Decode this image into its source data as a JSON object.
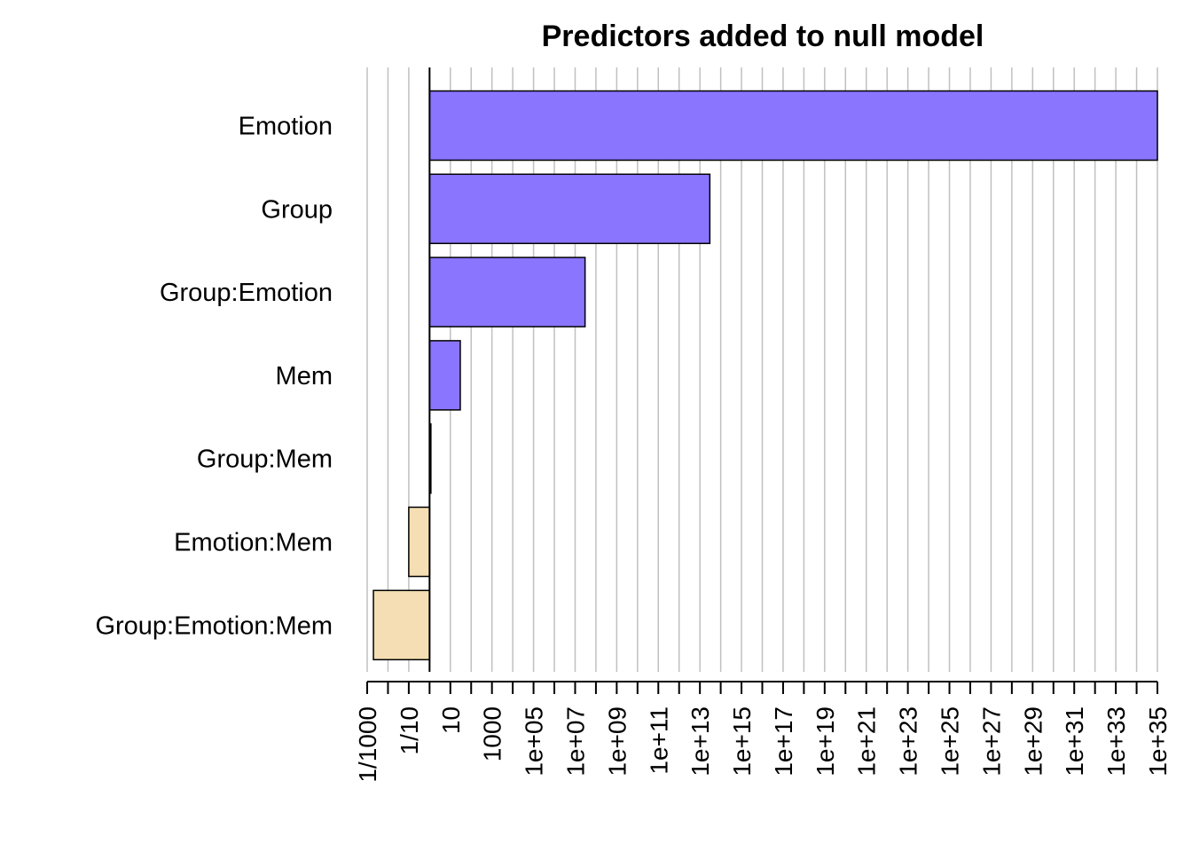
{
  "chart_data": {
    "type": "bar",
    "orientation": "horizontal",
    "title": "Predictors added to null model",
    "xlabel": "",
    "ylabel": "",
    "x_scale": "log10",
    "baseline": 1,
    "xlim": [
      0.001,
      1e+35
    ],
    "categories": [
      "Emotion",
      "Group",
      "Group:Emotion",
      "Mem",
      "Group:Mem",
      "Emotion:Mem",
      "Group:Emotion:Mem"
    ],
    "values": [
      1e+35,
      30000000000000.0,
      30000000.0,
      30,
      1,
      0.1,
      0.002
    ],
    "tick_labels": [
      "1/1000",
      "1/10",
      "10",
      "1000",
      "1e+05",
      "1e+07",
      "1e+09",
      "1e+11",
      "1e+13",
      "1e+15",
      "1e+17",
      "1e+19",
      "1e+21",
      "1e+23",
      "1e+25",
      "1e+27",
      "1e+29",
      "1e+31",
      "1e+33",
      "1e+35"
    ],
    "grid": true,
    "colors": {
      "positive": "#8a75ff",
      "negative": "#f5deb3",
      "grid": "#c0c0c0",
      "axis": "#000000"
    }
  }
}
